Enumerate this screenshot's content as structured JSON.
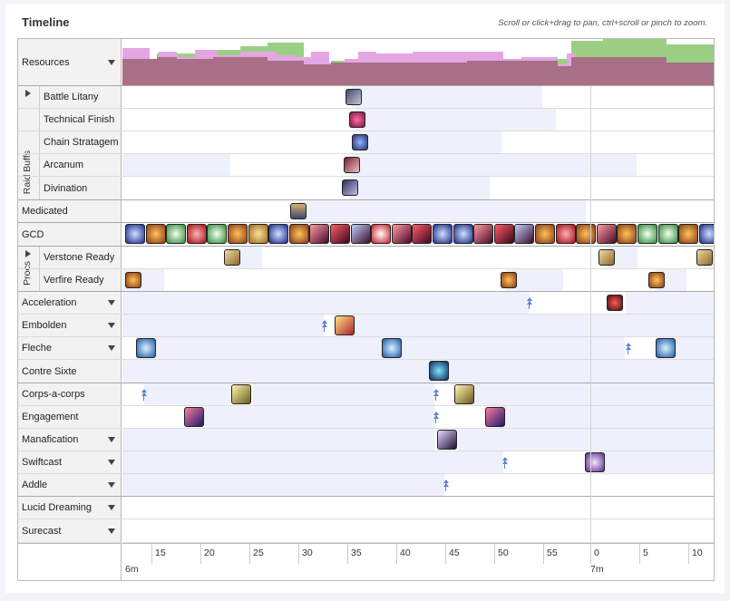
{
  "header": {
    "title": "Timeline",
    "hint": "Scroll or click+drag to pan, ctrl+scroll or pinch to zoom."
  },
  "rows": {
    "resources": "Resources",
    "raid_buffs_group": "Raid Buffs",
    "battle_litany": "Battle Litany",
    "technical_finish": "Technical Finish",
    "chain_stratagem": "Chain Stratagem",
    "arcanum": "Arcanum",
    "divination": "Divination",
    "medicated": "Medicated",
    "gcd": "GCD",
    "procs_group": "Procs",
    "verstone_ready": "Verstone Ready",
    "verfire_ready": "Verfire Ready",
    "acceleration": "Acceleration",
    "embolden": "Embolden",
    "fleche": "Fleche",
    "contre_sixte": "Contre Sixte",
    "corps_a_corps": "Corps-a-corps",
    "engagement": "Engagement",
    "manafication": "Manafication",
    "swiftcast": "Swiftcast",
    "addle": "Addle",
    "lucid_dreaming": "Lucid Dreaming",
    "surecast": "Surecast"
  },
  "axis": {
    "ticks": [
      "15",
      "20",
      "25",
      "30",
      "35",
      "40",
      "45",
      "50",
      "55",
      "0",
      "5",
      "10"
    ],
    "minutes": [
      "6m",
      "7m"
    ]
  },
  "colors": {
    "white_mana": "#e3a6e3",
    "black_mana": "#9ccf86",
    "overlap": "#a86f86",
    "bar_bg": "#eef0fb",
    "marker": "#5f7fd6"
  },
  "icons": {
    "gcd_sequence": [
      "verthunder-icon",
      "verfire-icon",
      "jolt-icon",
      "verflare-icon",
      "jolt-icon",
      "verfire-icon",
      "veraero-icon",
      "verthunder-icon",
      "verfire-icon",
      "enchanted-riposte-icon",
      "enchanted-zwerchhau-icon",
      "enchanted-redoublement-icon",
      "verholy-icon",
      "enchanted-riposte-icon",
      "enchanted-zwerchhau-icon",
      "verthunder-icon",
      "verthunder-icon",
      "enchanted-riposte-icon",
      "enchanted-zwerchhau-icon",
      "enchanted-redoublement-icon",
      "verfire-icon",
      "verflare-icon",
      "verfire-icon",
      "enchanted-riposte-icon",
      "verfire-icon",
      "jolt-icon",
      "jolt-icon",
      "verfire-icon",
      "verthunder-icon",
      "verfire-icon"
    ]
  }
}
